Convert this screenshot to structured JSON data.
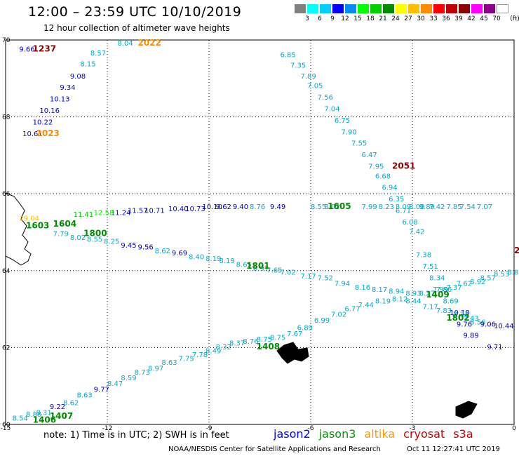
{
  "header": {
    "title": "12:00 – 23:59 UTC 10/10/2019",
    "subtitle": "12 hour collection of altimeter wave heights"
  },
  "colorbar": {
    "unit": "(ft)",
    "colors": [
      "#808080",
      "#00ffff",
      "#00cfff",
      "#0000ff",
      "#008cff",
      "#00ff00",
      "#00d000",
      "#008c00",
      "#ffff00",
      "#ffbf00",
      "#ff8c00",
      "#ff0000",
      "#c00000",
      "#8c0000",
      "#ff00ff",
      "#8c008c",
      "#ffffff"
    ],
    "labels": [
      "3",
      "6",
      "9",
      "12",
      "15",
      "18",
      "21",
      "24",
      "27",
      "30",
      "33",
      "36",
      "39",
      "42",
      "45",
      "70"
    ]
  },
  "map": {
    "lat_labels": [
      "70",
      "68",
      "66",
      "64",
      "62",
      "60"
    ],
    "lon_labels": [
      "-15",
      "-12",
      "-9",
      "-6",
      "-3",
      "0"
    ],
    "tracks": [
      {
        "color": "#4040c0",
        "points": [
          [
            "9.66",
            ""
          ],
          [
            "",
            ""
          ]
        ]
      },
      {
        "color": "#3399cc",
        "points": [
          [
            "8.04",
            ""
          ],
          [
            "8.57",
            ""
          ],
          [
            "8.15",
            ""
          ]
        ]
      },
      {
        "color": "#0000cc",
        "points": [
          [
            "9.08",
            ""
          ],
          [
            "9.34",
            ""
          ],
          [
            "10.13",
            ""
          ],
          [
            "10.16",
            ""
          ],
          [
            "10.22",
            ""
          ],
          [
            "10.61",
            ""
          ]
        ]
      }
    ],
    "labels": [
      {
        "t": "9.66",
        "c": "#0000cc",
        "lon": -14.6,
        "lat": 69.7
      },
      {
        "t": "8.04",
        "c": "#00aacc",
        "lon": -11.7,
        "lat": 69.85
      },
      {
        "t": "8.57",
        "c": "#00aacc",
        "lon": -12.5,
        "lat": 69.6
      },
      {
        "t": "8.15",
        "c": "#00aacc",
        "lon": -12.8,
        "lat": 69.32
      },
      {
        "t": "9.08",
        "c": "#0000cc",
        "lon": -13.1,
        "lat": 69.0
      },
      {
        "t": "9.34",
        "c": "#0000cc",
        "lon": -13.4,
        "lat": 68.7
      },
      {
        "t": "10.13",
        "c": "#0000cc",
        "lon": -13.7,
        "lat": 68.4
      },
      {
        "t": "10.16",
        "c": "#0000cc",
        "lon": -14.0,
        "lat": 68.1
      },
      {
        "t": "10.22",
        "c": "#0000cc",
        "lon": -14.2,
        "lat": 67.8
      },
      {
        "t": "10.61",
        "c": "#0000cc",
        "lon": -14.5,
        "lat": 67.5
      },
      {
        "t": "6.85",
        "c": "#00aacc",
        "lon": -6.9,
        "lat": 69.55
      },
      {
        "t": "7.35",
        "c": "#00aacc",
        "lon": -6.6,
        "lat": 69.28
      },
      {
        "t": "7.89",
        "c": "#00aacc",
        "lon": -6.3,
        "lat": 69.0
      },
      {
        "t": "7.05",
        "c": "#00aacc",
        "lon": -6.1,
        "lat": 68.75
      },
      {
        "t": "7.56",
        "c": "#00aacc",
        "lon": -5.8,
        "lat": 68.45
      },
      {
        "t": "7.04",
        "c": "#00aacc",
        "lon": -5.6,
        "lat": 68.15
      },
      {
        "t": "6.75",
        "c": "#00aacc",
        "lon": -5.3,
        "lat": 67.85
      },
      {
        "t": "7.90",
        "c": "#00aacc",
        "lon": -5.1,
        "lat": 67.55
      },
      {
        "t": "7.55",
        "c": "#00aacc",
        "lon": -4.8,
        "lat": 67.25
      },
      {
        "t": "6.47",
        "c": "#00aacc",
        "lon": -4.5,
        "lat": 66.95
      },
      {
        "t": "7.95",
        "c": "#00aacc",
        "lon": -4.3,
        "lat": 66.65
      },
      {
        "t": "6.68",
        "c": "#00aacc",
        "lon": -4.1,
        "lat": 66.4
      },
      {
        "t": "6.94",
        "c": "#00aacc",
        "lon": -3.9,
        "lat": 66.1
      },
      {
        "t": "6.35",
        "c": "#00aacc",
        "lon": -3.7,
        "lat": 65.8
      },
      {
        "t": "6.71",
        "c": "#00aacc",
        "lon": -3.5,
        "lat": 65.5
      },
      {
        "t": "6.08",
        "c": "#00aacc",
        "lon": -3.3,
        "lat": 65.2
      },
      {
        "t": "7.42",
        "c": "#00aacc",
        "lon": -3.1,
        "lat": 64.95
      },
      {
        "t": "7.38",
        "c": "#00aacc",
        "lon": -2.9,
        "lat": 64.35
      },
      {
        "t": "7.51",
        "c": "#00aacc",
        "lon": -2.7,
        "lat": 64.05
      },
      {
        "t": "8.34",
        "c": "#00aacc",
        "lon": -2.5,
        "lat": 63.75
      },
      {
        "t": "7.86",
        "c": "#00aacc",
        "lon": -2.3,
        "lat": 63.45
      },
      {
        "t": "8.69",
        "c": "#00aacc",
        "lon": -2.1,
        "lat": 63.15
      },
      {
        "t": "10.18",
        "c": "#0000cc",
        "lon": -1.9,
        "lat": 62.85
      },
      {
        "t": "9.76",
        "c": "#0000cc",
        "lon": -1.7,
        "lat": 62.55
      },
      {
        "t": "9.89",
        "c": "#0000cc",
        "lon": -1.5,
        "lat": 62.25
      },
      {
        "t": "9.71",
        "c": "#0000cc",
        "lon": -0.8,
        "lat": 61.95
      }
    ],
    "times": [
      {
        "t": "1237",
        "c": "#8c0000"
      },
      {
        "t": "2022",
        "c": "#ff8c00"
      },
      {
        "t": "2023",
        "c": "#ff8c00"
      },
      {
        "t": "2051",
        "c": "#8c0000"
      },
      {
        "t": "1605",
        "c": "#008c00"
      },
      {
        "t": "1603",
        "c": "#008c00"
      },
      {
        "t": "1604",
        "c": "#008c00"
      },
      {
        "t": "1800",
        "c": "#008c00"
      },
      {
        "t": "1801",
        "c": "#008c00"
      },
      {
        "t": "1409",
        "c": "#008c00"
      },
      {
        "t": "1802",
        "c": "#008c00"
      },
      {
        "t": "1408",
        "c": "#008c00"
      },
      {
        "t": "1407",
        "c": "#008c00"
      },
      {
        "t": "1406",
        "c": "#008c00"
      },
      {
        "t": "2",
        "c": "#8c0000"
      }
    ]
  },
  "footer": {
    "note": "note: 1) Time is in UTC; 2) SWH is in feet",
    "legend": [
      {
        "label": "jason2",
        "color": "#0000ff"
      },
      {
        "label": "jason3",
        "color": "#009900"
      },
      {
        "label": "altika",
        "color": "#ff9900"
      },
      {
        "label": "cryosat",
        "color": "#cc0000"
      },
      {
        "label": "s3a",
        "color": "#cc0000"
      }
    ],
    "credit": "NOAA/NESDIS Center for Satellite Applications and Research",
    "timestamp": "Oct 11 12:27:41 UTC 2019"
  }
}
